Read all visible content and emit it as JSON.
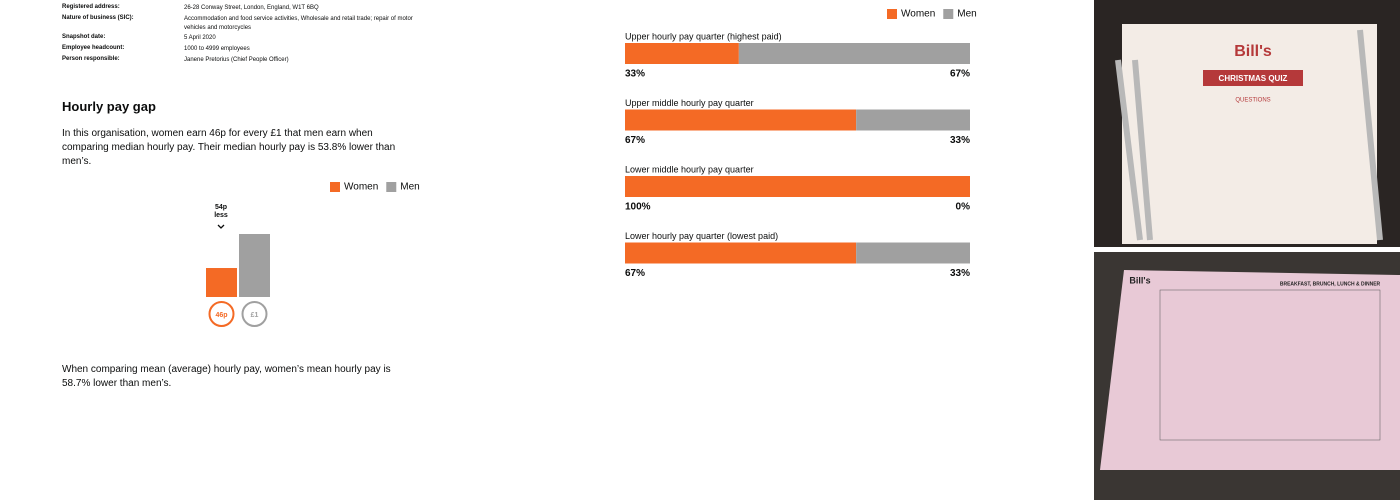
{
  "details": {
    "rows": [
      [
        "Registered address:",
        "26-28 Conway Street, London, England, W1T 6BQ"
      ],
      [
        "Nature of business (SIC):",
        "Accommodation and food service activities, Wholesale and retail trade; repair of motor vehicles and motorcycles"
      ],
      [
        "Snapshot date:",
        "5 April 2020"
      ],
      [
        "Employee headcount:",
        "1000 to 4999 employees"
      ],
      [
        "Person responsible:",
        "Janene Pretorius (Chief People Officer)"
      ]
    ]
  },
  "hourly": {
    "title": "Hourly pay gap",
    "intro": "In this organisation, women earn 46p for every £1 that men earn when comparing median hourly pay. Their median hourly pay is 53.8% lower than men’s.",
    "outro": "When comparing mean (average) hourly pay, women’s mean hourly pay is 58.7% lower than men’s."
  },
  "chart_data": [
    {
      "type": "bar",
      "legend": [
        "Women",
        "Men"
      ],
      "colors": [
        "#f46a25",
        "#a0a0a0"
      ],
      "annotation": [
        "54p",
        "less"
      ],
      "values": [
        46,
        100
      ],
      "value_labels": [
        "46p",
        "£1"
      ],
      "ylim": [
        0,
        100
      ]
    },
    {
      "type": "stacked-bar",
      "legend": [
        "Women",
        "Men"
      ],
      "colors": [
        "#f46a25",
        "#a0a0a0"
      ],
      "xlim": [
        0,
        100
      ],
      "categories": [
        "Upper hourly pay quarter (highest paid)",
        "Upper middle hourly pay quarter",
        "Lower middle hourly pay quarter",
        "Lower hourly pay quarter (lowest paid)"
      ],
      "series": [
        {
          "name": "Women",
          "values": [
            33,
            67,
            100,
            67
          ],
          "value_labels": [
            "33%",
            "67%",
            "100%",
            "67%"
          ]
        },
        {
          "name": "Men",
          "values": [
            67,
            33,
            0,
            33
          ],
          "value_labels": [
            "67%",
            "33%",
            "0%",
            "33%"
          ]
        }
      ]
    }
  ],
  "photos": {
    "quiz_brand": "Bill's",
    "quiz_title": "CHRISTMAS QUIZ",
    "quiz_heading": "QUESTIONS",
    "menu_brand": "Bill's",
    "menu_title": "BREAKFAST, BRUNCH, LUNCH & DINNER"
  }
}
